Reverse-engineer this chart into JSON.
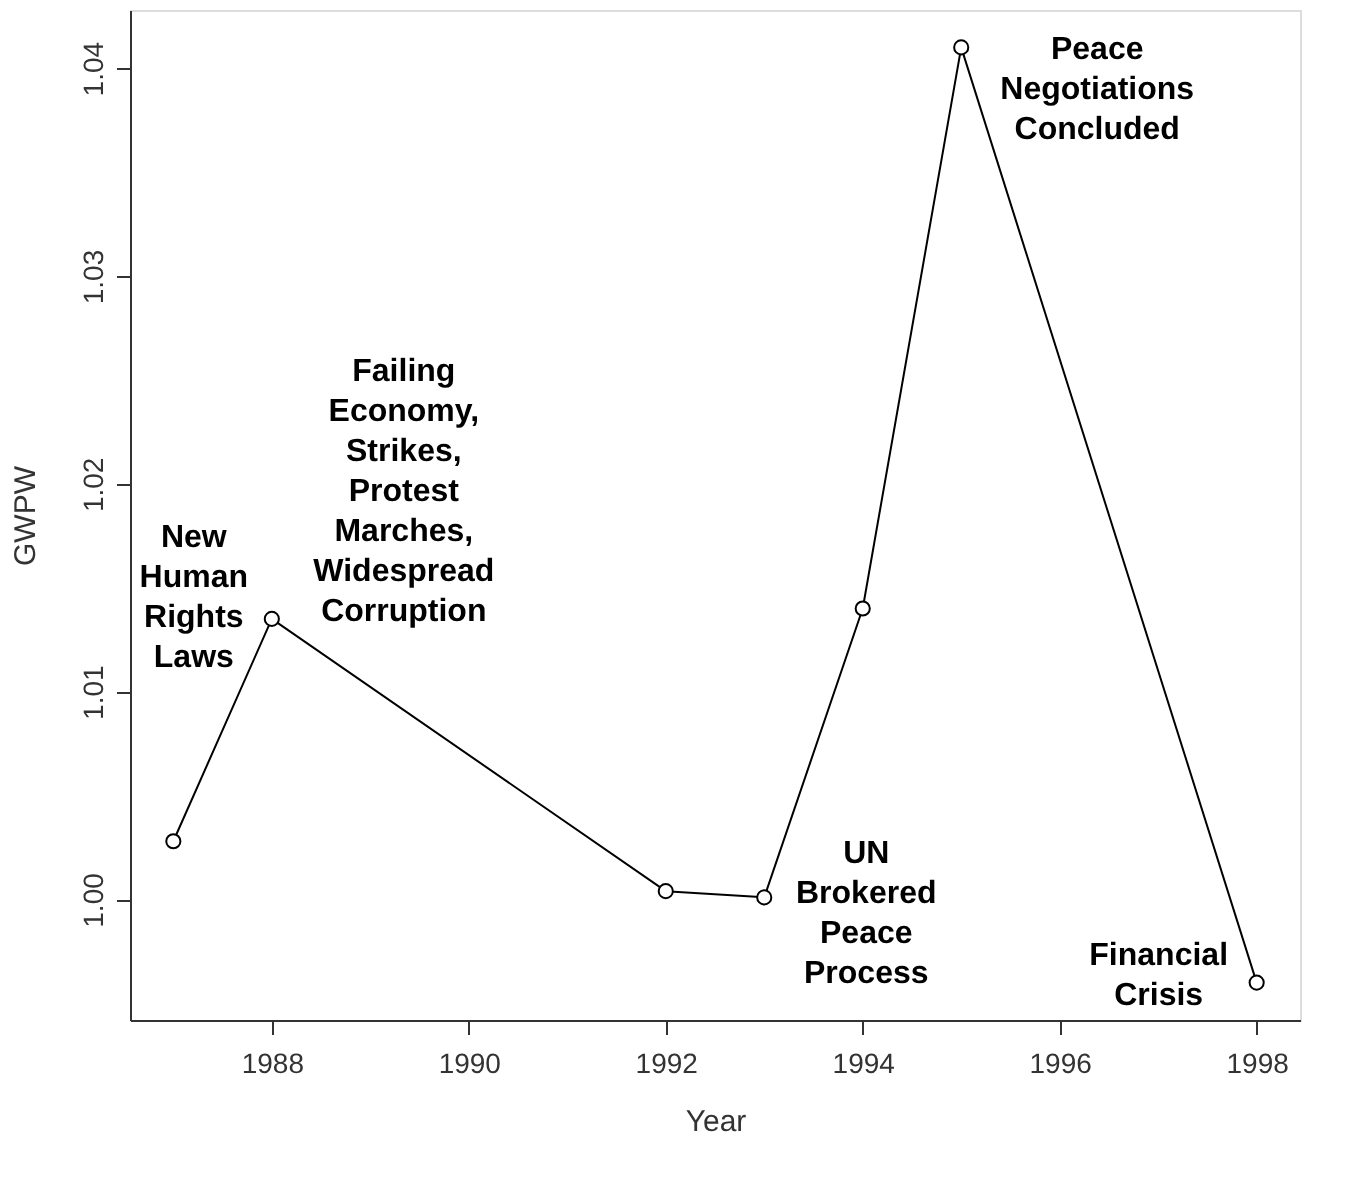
{
  "chart_data": {
    "type": "line",
    "xlabel": "Year",
    "ylabel": "GWPW",
    "x": [
      1987,
      1988,
      1992,
      1993,
      1994,
      1995,
      1998
    ],
    "series": [
      {
        "color": "#000000",
        "values": [
          1.0028,
          1.0135,
          1.0004,
          1.0001,
          1.014,
          1.041,
          0.996
        ]
      }
    ],
    "xlim": [
      1986.56,
      1998.44
    ],
    "xticks": [
      1988,
      1990,
      1992,
      1994,
      1996,
      1998
    ],
    "ylim": [
      0.9942,
      1.0428
    ],
    "yticks": [
      {
        "value": 1.0,
        "label": "1.00"
      },
      1.01,
      1.02,
      1.03,
      1.04
    ],
    "marker": "circle",
    "line_style": "solid",
    "grid": false,
    "annotations": [
      {
        "text": "New\nHuman\nRights\nLaws",
        "x": 1988,
        "y": 1.0135
      },
      {
        "text": "Failing\nEconomy,\nStrikes,\nProtest\nMarches,\nWidespread\nCorruption",
        "x": 1988,
        "y": 1.0135
      },
      {
        "text": "UN\nBrokered\nPeace\nProcess",
        "x": 1993,
        "y": 1.0001
      },
      {
        "text": "Peace\nNegotiations\nConcluded",
        "x": 1995,
        "y": 1.041
      },
      {
        "text": "Financial\nCrisis",
        "x": 1998,
        "y": 0.996
      }
    ]
  }
}
